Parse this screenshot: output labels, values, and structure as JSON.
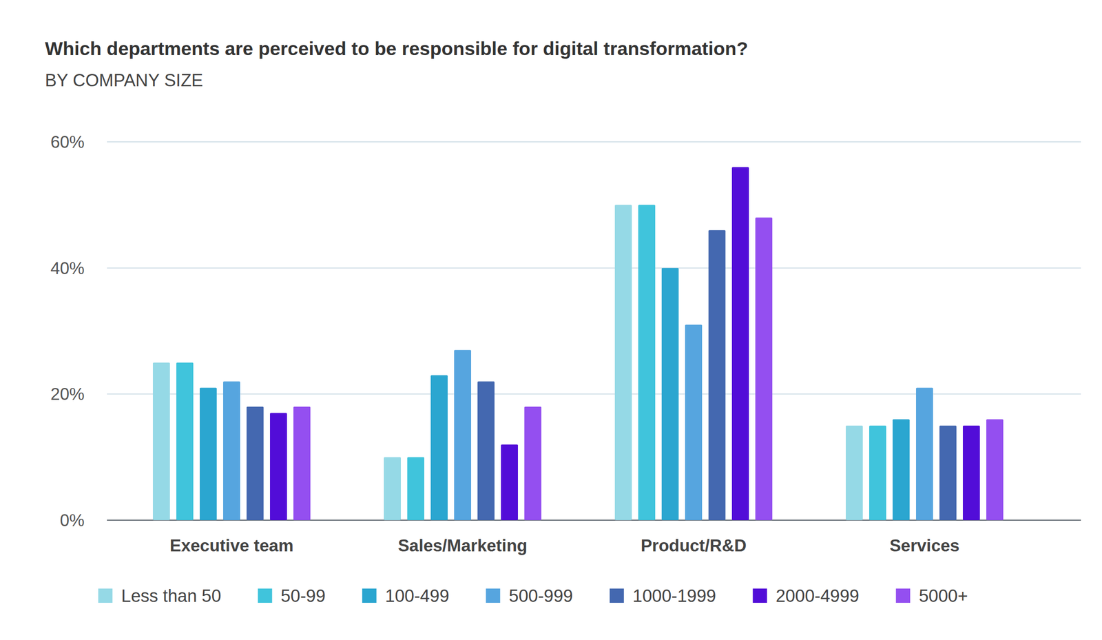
{
  "chart_data": {
    "type": "bar",
    "title": "Which departments are perceived to be responsible for digital transformation?",
    "subtitle": "BY COMPANY SIZE",
    "categories": [
      "Executive team",
      "Sales/Marketing",
      "Product/R&D",
      "Services"
    ],
    "series": [
      {
        "name": "Less than 50",
        "color": "#95d9e6",
        "values": [
          25,
          10,
          50,
          15
        ]
      },
      {
        "name": "50-99",
        "color": "#40c4dc",
        "values": [
          25,
          10,
          50,
          15
        ]
      },
      {
        "name": "100-499",
        "color": "#2ba6d0",
        "values": [
          21,
          23,
          40,
          16
        ]
      },
      {
        "name": "500-999",
        "color": "#56a5df",
        "values": [
          22,
          27,
          31,
          21
        ]
      },
      {
        "name": "1000-1999",
        "color": "#4468b0",
        "values": [
          18,
          22,
          46,
          15
        ]
      },
      {
        "name": "2000-4999",
        "color": "#520dd8",
        "values": [
          17,
          12,
          56,
          15
        ]
      },
      {
        "name": "5000+",
        "color": "#944ff0",
        "values": [
          18,
          18,
          48,
          16
        ]
      }
    ],
    "ylim": [
      0,
      60
    ],
    "yticks": [
      {
        "value": 0,
        "label": "0%"
      },
      {
        "value": 20,
        "label": "20%"
      },
      {
        "value": 40,
        "label": "40%"
      },
      {
        "value": 60,
        "label": "60%"
      }
    ],
    "grid": true,
    "legend": "bottom"
  }
}
